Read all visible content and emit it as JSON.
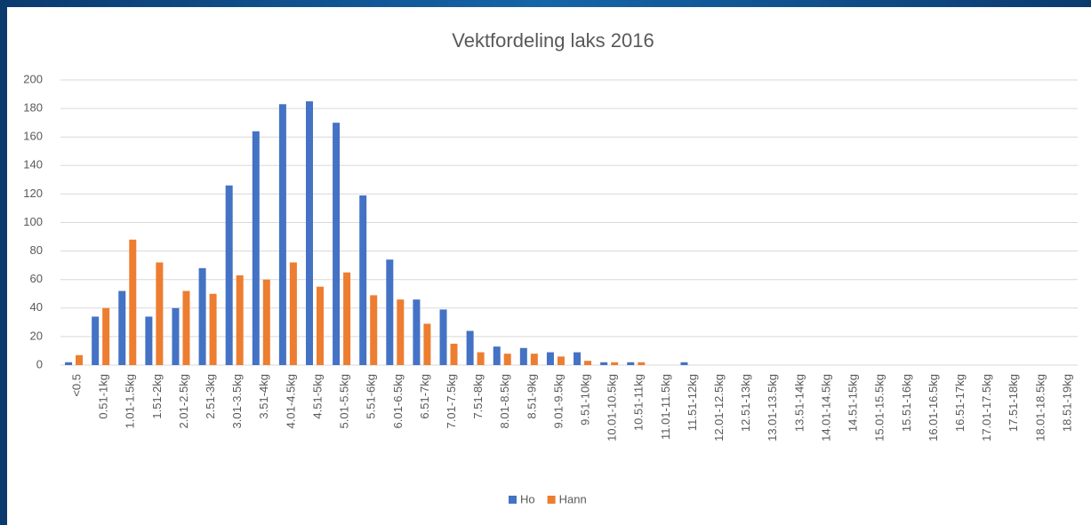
{
  "chart_data": {
    "type": "bar",
    "title": "Vektfordeling laks 2016",
    "categories": [
      "<0.5",
      "0.51-1kg",
      "1.01-1.5kg",
      "1.51-2kg",
      "2.01-2.5kg",
      "2.51-3kg",
      "3.01-3.5kg",
      "3.51-4kg",
      "4.01-4.5kg",
      "4.51-5kg",
      "5.01-5.5kg",
      "5.51-6kg",
      "6.01-6.5kg",
      "6.51-7kg",
      "7.01-7.5kg",
      "7.51-8kg",
      "8.01-8.5kg",
      "8.51-9kg",
      "9.01-9.5kg",
      "9.51-10kg",
      "10.01-10.5kg",
      "10.51-11kg",
      "11.01-11.5kg",
      "11.51-12kg",
      "12.01-12.5kg",
      "12.51-13kg",
      "13.01-13.5kg",
      "13.51-14kg",
      "14.01-14.5kg",
      "14.51-15kg",
      "15.01-15.5kg",
      "15.51-16kg",
      "16.01-16.5kg",
      "16.51-17kg",
      "17.01-17.5kg",
      "17.51-18kg",
      "18.01-18.5kg",
      "18.51-19kg"
    ],
    "series": [
      {
        "name": "Ho",
        "color": "#4472c4",
        "values": [
          2,
          34,
          52,
          34,
          40,
          68,
          126,
          164,
          183,
          185,
          170,
          119,
          74,
          46,
          39,
          24,
          13,
          12,
          9,
          9,
          2,
          2,
          0,
          2,
          0,
          0,
          0,
          0,
          0,
          0,
          0,
          0,
          0,
          0,
          0,
          0,
          0,
          0
        ]
      },
      {
        "name": "Hann",
        "color": "#ed7d31",
        "values": [
          7,
          40,
          88,
          72,
          52,
          50,
          63,
          60,
          72,
          55,
          65,
          49,
          46,
          29,
          15,
          9,
          8,
          8,
          6,
          3,
          2,
          2,
          0,
          0,
          0,
          0,
          0,
          0,
          0,
          0,
          0,
          0,
          0,
          0,
          0,
          0,
          0,
          0
        ]
      }
    ],
    "ylim": [
      0,
      200
    ],
    "yticks": [
      0,
      20,
      40,
      60,
      80,
      100,
      120,
      140,
      160,
      180,
      200
    ],
    "grid": true,
    "legend": "bottom"
  }
}
